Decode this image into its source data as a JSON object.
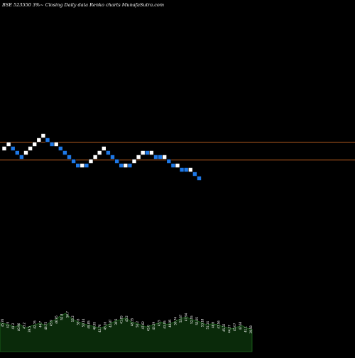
{
  "title": "BSE 523550  3%~  Closing Daily data  Renko  charts MunafaSutra.com",
  "colors": {
    "background": "#000000",
    "up_brick": "#ffffff",
    "down_brick": "#1e78e6",
    "reference_line": "#b35a1f",
    "volume_fill": "#0a2a0a",
    "volume_edge": "#1f6b1f",
    "text": "#ffffff"
  },
  "chart_data": {
    "type": "renko",
    "title": "BSE 523550  3%~  Closing Daily data  Renko  charts MunafaSutra.com",
    "brick_step": 1,
    "bricks": [
      {
        "dir": "up",
        "level": 0
      },
      {
        "dir": "up",
        "level": 1
      },
      {
        "dir": "down",
        "level": 0
      },
      {
        "dir": "down",
        "level": -1
      },
      {
        "dir": "down",
        "level": -2
      },
      {
        "dir": "up",
        "level": -1
      },
      {
        "dir": "up",
        "level": 0
      },
      {
        "dir": "up",
        "level": 1
      },
      {
        "dir": "up",
        "level": 2
      },
      {
        "dir": "up",
        "level": 3
      },
      {
        "dir": "down",
        "level": 2
      },
      {
        "dir": "down",
        "level": 1
      },
      {
        "dir": "up",
        "level": 1
      },
      {
        "dir": "down",
        "level": 0
      },
      {
        "dir": "down",
        "level": -1
      },
      {
        "dir": "down",
        "level": -2
      },
      {
        "dir": "down",
        "level": -3
      },
      {
        "dir": "down",
        "level": -4
      },
      {
        "dir": "up",
        "level": -4
      },
      {
        "dir": "down",
        "level": -4
      },
      {
        "dir": "up",
        "level": -3
      },
      {
        "dir": "up",
        "level": -2
      },
      {
        "dir": "up",
        "level": -1
      },
      {
        "dir": "up",
        "level": 0
      },
      {
        "dir": "down",
        "level": -1
      },
      {
        "dir": "down",
        "level": -2
      },
      {
        "dir": "down",
        "level": -3
      },
      {
        "dir": "down",
        "level": -4
      },
      {
        "dir": "up",
        "level": -4
      },
      {
        "dir": "down",
        "level": -4
      },
      {
        "dir": "up",
        "level": -3
      },
      {
        "dir": "up",
        "level": -2
      },
      {
        "dir": "up",
        "level": -1
      },
      {
        "dir": "down",
        "level": -1
      },
      {
        "dir": "up",
        "level": -1
      },
      {
        "dir": "down",
        "level": -2
      },
      {
        "dir": "down",
        "level": -2
      },
      {
        "dir": "up",
        "level": -2
      },
      {
        "dir": "down",
        "level": -3
      },
      {
        "dir": "down",
        "level": -4
      },
      {
        "dir": "up",
        "level": -4
      },
      {
        "dir": "down",
        "level": -5
      },
      {
        "dir": "down",
        "level": -5
      },
      {
        "dir": "up",
        "level": -5
      },
      {
        "dir": "down",
        "level": -6
      },
      {
        "dir": "down",
        "level": -7
      }
    ],
    "reference_lines": [
      {
        "level": 1.5
      },
      {
        "level": -2.7
      }
    ],
    "volume": [
      47,
      45,
      43,
      40,
      44,
      38,
      41,
      44,
      46,
      42,
      48,
      52,
      58,
      62,
      55,
      50,
      47,
      44,
      42,
      40,
      38,
      42,
      46,
      50,
      52,
      55,
      48,
      46,
      43,
      40,
      42,
      45,
      48,
      44,
      46,
      50,
      54,
      56,
      52,
      50,
      47,
      43,
      45,
      44,
      41,
      39,
      37,
      40,
      42,
      38,
      36
    ],
    "volume_labels": [
      "45.76",
      "42.9",
      "41.2",
      "40.96",
      "43.2",
      "39.5",
      "42.76",
      "44.7",
      "48.75",
      "45.9",
      "46.95",
      "52.8",
      "56.7",
      "55.2",
      "55.6",
      "50.14",
      "49.85",
      "46.95",
      "42.76",
      "45.16",
      "42.87",
      "39.5",
      "41.85",
      "45.2",
      "48.35",
      "50.2",
      "47.62",
      "45.0",
      "43.29",
      "43.5",
      "43.95",
      "48.85",
      "50.74",
      "52.67",
      "47.94",
      "52.55",
      "55.05",
      "53.18",
      "51.14",
      "48.6",
      "47.56",
      "45.32",
      "44.37",
      "45.07",
      "42.68",
      "41.1",
      "39.58"
    ]
  }
}
